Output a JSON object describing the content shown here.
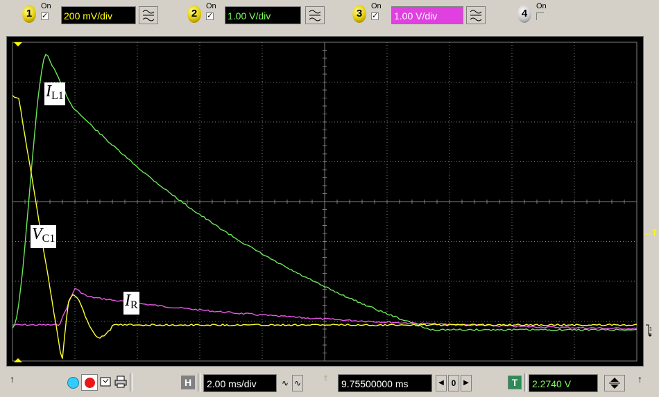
{
  "channels": [
    {
      "num": "1",
      "on_label": "On",
      "checked": true,
      "volts": "200 mV/div",
      "volts_color": "#ffff00",
      "volts_bg": "#000000",
      "coupling_icon": "ac-dc-coupling-icon"
    },
    {
      "num": "2",
      "on_label": "On",
      "checked": true,
      "volts": "1.00 V/div",
      "volts_color": "#7cff5c",
      "volts_bg": "#000000",
      "coupling_icon": "ac-dc-coupling-icon"
    },
    {
      "num": "3",
      "on_label": "On",
      "checked": true,
      "volts": "1.00 V/div",
      "volts_color": "#ffffff",
      "volts_bg": "#e040e0",
      "coupling_icon": "ac-dc-coupling-icon"
    },
    {
      "num": "4",
      "on_label": "On",
      "checked": false
    }
  ],
  "check_mark": "✓",
  "traces": {
    "I_L1": {
      "color": "#6ce85a",
      "label_main": "I",
      "label_sub": "L1"
    },
    "V_C1": {
      "color": "#ffff33",
      "label_main": "V",
      "label_sub": "C1"
    },
    "I_R": {
      "color": "#e858e8",
      "label_main": "I",
      "label_sub": "R"
    }
  },
  "timebase": {
    "h_label": "H",
    "value": "2.00 ms/div"
  },
  "trigger_pos": {
    "value": "9.75500000 ms",
    "counter": "0"
  },
  "trigger_level": {
    "t_label": "T",
    "value": "2.2740 V"
  },
  "arrows": {
    "left": "↑",
    "right": "↑",
    "trigger_marker": "←T"
  },
  "colors": {
    "grid": "#808080",
    "screen_bg": "#000000",
    "channel1": "#ffff00",
    "channel2": "#7cff5c",
    "channel3": "#e040e0"
  }
}
